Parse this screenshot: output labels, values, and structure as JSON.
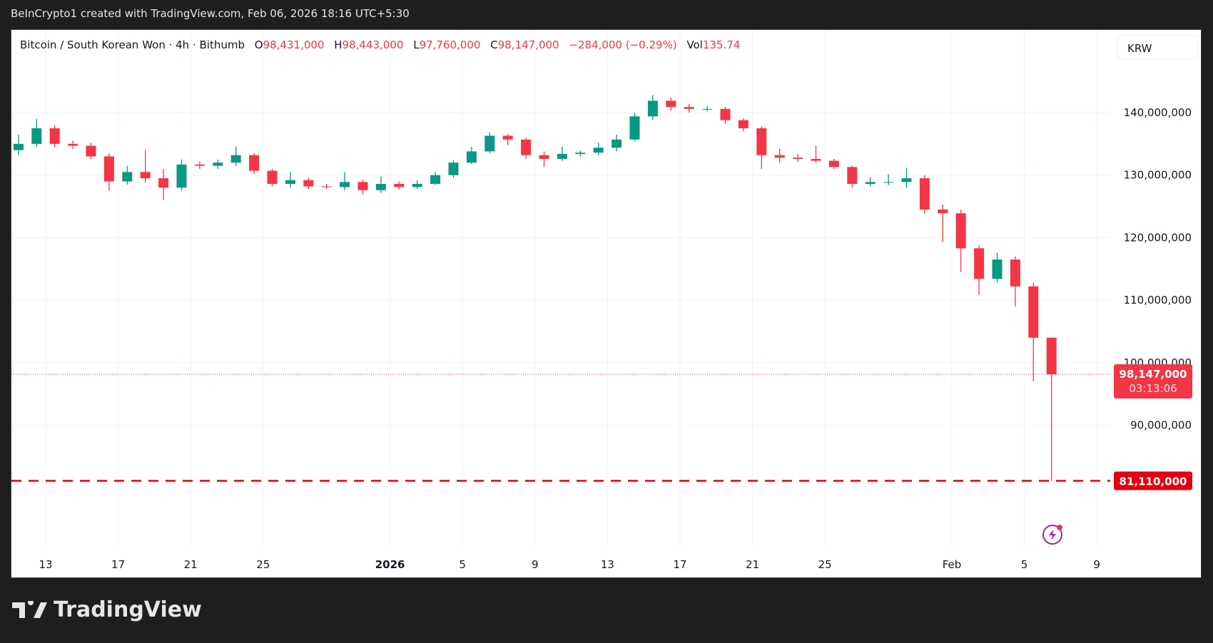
{
  "header": {
    "title": "BeInCrypto1 created with TradingView.com, Feb 06, 2026 18:16 UTC+5:30"
  },
  "legend": {
    "symbol": "Bitcoin / South Korean Won · 4h · Bithumb",
    "open_label": "O",
    "open": "98,431,000",
    "high_label": "H",
    "high": "98,443,000",
    "low_label": "L",
    "low": "97,760,000",
    "close_label": "C",
    "close": "98,147,000",
    "change": "−284,000 (−0.29%)",
    "vol_label": "Vol",
    "vol": "135.74"
  },
  "currency_button": "KRW",
  "price_label": {
    "price": "98,147,000",
    "countdown": "03:13:06"
  },
  "level_label": "81,110,000",
  "brand": "TradingView",
  "colors": {
    "up": "#089981",
    "down": "#f23645",
    "level": "#e3000f",
    "lightning": "#9c27b0"
  },
  "chart_data": {
    "type": "candlestick",
    "timeframe_note": "candles approximated per day from 4h chart",
    "yticks": [
      "90,000,000",
      "100,000,000",
      "110,000,000",
      "120,000,000",
      "130,000,000",
      "140,000,000"
    ],
    "ytick_values": [
      90000000,
      100000000,
      110000000,
      120000000,
      130000000,
      140000000
    ],
    "ylim": [
      72000000,
      150000000
    ],
    "xticks": [
      {
        "label": "13",
        "date": "2025-12-13"
      },
      {
        "label": "17",
        "date": "2025-12-17"
      },
      {
        "label": "21",
        "date": "2025-12-21"
      },
      {
        "label": "25",
        "date": "2025-12-25"
      },
      {
        "label": "2026",
        "date": "2026-01-01"
      },
      {
        "label": "5",
        "date": "2026-01-05"
      },
      {
        "label": "9",
        "date": "2026-01-09"
      },
      {
        "label": "13",
        "date": "2026-01-13"
      },
      {
        "label": "17",
        "date": "2026-01-17"
      },
      {
        "label": "21",
        "date": "2026-01-21"
      },
      {
        "label": "25",
        "date": "2026-01-25"
      },
      {
        "label": "Feb",
        "date": "2026-02-01"
      },
      {
        "label": "5",
        "date": "2026-02-05"
      },
      {
        "label": "9",
        "date": "2026-02-09"
      }
    ],
    "horizontal_line": 81110000,
    "last_price": 98147000,
    "grid": true,
    "candles": [
      {
        "date": "2025-12-11",
        "o": 134.0,
        "h": 136.5,
        "l": 133.2,
        "c": 135.0
      },
      {
        "date": "2025-12-12",
        "o": 135.0,
        "h": 139.0,
        "l": 134.5,
        "c": 137.5
      },
      {
        "date": "2025-12-13",
        "o": 137.5,
        "h": 138.0,
        "l": 134.5,
        "c": 135.0
      },
      {
        "date": "2025-12-14",
        "o": 135.0,
        "h": 135.5,
        "l": 134.2,
        "c": 134.7
      },
      {
        "date": "2025-12-15",
        "o": 134.7,
        "h": 135.2,
        "l": 132.5,
        "c": 133.0
      },
      {
        "date": "2025-12-16",
        "o": 133.0,
        "h": 133.5,
        "l": 127.5,
        "c": 129.0
      },
      {
        "date": "2025-12-17",
        "o": 129.0,
        "h": 131.5,
        "l": 128.5,
        "c": 130.5
      },
      {
        "date": "2025-12-18",
        "o": 130.5,
        "h": 134.0,
        "l": 128.8,
        "c": 129.5
      },
      {
        "date": "2025-12-19",
        "o": 129.5,
        "h": 131.0,
        "l": 126.0,
        "c": 128.0
      },
      {
        "date": "2025-12-20",
        "o": 128.0,
        "h": 132.5,
        "l": 127.5,
        "c": 131.7
      },
      {
        "date": "2025-12-21",
        "o": 131.7,
        "h": 132.2,
        "l": 131.0,
        "c": 131.5
      },
      {
        "date": "2025-12-22",
        "o": 131.5,
        "h": 132.5,
        "l": 131.0,
        "c": 132.0
      },
      {
        "date": "2025-12-23",
        "o": 132.0,
        "h": 134.6,
        "l": 131.5,
        "c": 133.2
      },
      {
        "date": "2025-12-24",
        "o": 133.2,
        "h": 133.5,
        "l": 130.2,
        "c": 130.7
      },
      {
        "date": "2025-12-25",
        "o": 130.7,
        "h": 131.0,
        "l": 128.2,
        "c": 128.6
      },
      {
        "date": "2025-12-26",
        "o": 128.6,
        "h": 130.5,
        "l": 128.0,
        "c": 129.2
      },
      {
        "date": "2025-12-27",
        "o": 129.2,
        "h": 129.6,
        "l": 127.8,
        "c": 128.2
      },
      {
        "date": "2025-12-28",
        "o": 128.2,
        "h": 128.6,
        "l": 127.8,
        "c": 128.1
      },
      {
        "date": "2025-12-29",
        "o": 128.1,
        "h": 130.5,
        "l": 127.6,
        "c": 128.9
      },
      {
        "date": "2025-12-30",
        "o": 128.9,
        "h": 129.3,
        "l": 126.9,
        "c": 127.6
      },
      {
        "date": "2025-12-31",
        "o": 127.6,
        "h": 129.8,
        "l": 127.2,
        "c": 128.6
      },
      {
        "date": "2026-01-01",
        "o": 128.6,
        "h": 129.0,
        "l": 127.7,
        "c": 128.1
      },
      {
        "date": "2026-01-02",
        "o": 128.1,
        "h": 129.2,
        "l": 127.8,
        "c": 128.6
      },
      {
        "date": "2026-01-03",
        "o": 128.6,
        "h": 130.5,
        "l": 128.4,
        "c": 130.0
      },
      {
        "date": "2026-01-04",
        "o": 130.0,
        "h": 132.4,
        "l": 129.6,
        "c": 132.0
      },
      {
        "date": "2026-01-05",
        "o": 132.0,
        "h": 134.5,
        "l": 131.8,
        "c": 133.8
      },
      {
        "date": "2026-01-06",
        "o": 133.8,
        "h": 136.8,
        "l": 133.5,
        "c": 136.3
      },
      {
        "date": "2026-01-07",
        "o": 136.3,
        "h": 136.6,
        "l": 134.8,
        "c": 135.7
      },
      {
        "date": "2026-01-08",
        "o": 135.7,
        "h": 136.0,
        "l": 132.6,
        "c": 133.2
      },
      {
        "date": "2026-01-09",
        "o": 133.2,
        "h": 133.8,
        "l": 131.3,
        "c": 132.6
      },
      {
        "date": "2026-01-10",
        "o": 132.6,
        "h": 134.5,
        "l": 132.3,
        "c": 133.4
      },
      {
        "date": "2026-01-11",
        "o": 133.4,
        "h": 133.9,
        "l": 133.0,
        "c": 133.6
      },
      {
        "date": "2026-01-12",
        "o": 133.6,
        "h": 135.2,
        "l": 133.2,
        "c": 134.4
      },
      {
        "date": "2026-01-13",
        "o": 134.4,
        "h": 136.5,
        "l": 133.8,
        "c": 135.7
      },
      {
        "date": "2026-01-14",
        "o": 135.7,
        "h": 140.0,
        "l": 135.4,
        "c": 139.4
      },
      {
        "date": "2026-01-15",
        "o": 139.4,
        "h": 142.8,
        "l": 138.8,
        "c": 141.9
      },
      {
        "date": "2026-01-16",
        "o": 141.9,
        "h": 142.4,
        "l": 140.3,
        "c": 140.9
      },
      {
        "date": "2026-01-17",
        "o": 140.9,
        "h": 141.4,
        "l": 140.0,
        "c": 140.6
      },
      {
        "date": "2026-01-18",
        "o": 140.6,
        "h": 141.0,
        "l": 140.2,
        "c": 140.6
      },
      {
        "date": "2026-01-19",
        "o": 140.6,
        "h": 140.9,
        "l": 138.2,
        "c": 138.8
      },
      {
        "date": "2026-01-20",
        "o": 138.8,
        "h": 139.1,
        "l": 137.0,
        "c": 137.5
      },
      {
        "date": "2026-01-21",
        "o": 137.5,
        "h": 137.8,
        "l": 131.0,
        "c": 133.2
      },
      {
        "date": "2026-01-22",
        "o": 133.2,
        "h": 134.2,
        "l": 132.0,
        "c": 132.8
      },
      {
        "date": "2026-01-23",
        "o": 132.8,
        "h": 133.4,
        "l": 132.1,
        "c": 132.6
      },
      {
        "date": "2026-01-24",
        "o": 132.6,
        "h": 134.7,
        "l": 132.0,
        "c": 132.3
      },
      {
        "date": "2026-01-25",
        "o": 132.3,
        "h": 132.6,
        "l": 131.0,
        "c": 131.3
      },
      {
        "date": "2026-01-26",
        "o": 131.3,
        "h": 131.5,
        "l": 128.0,
        "c": 128.6
      },
      {
        "date": "2026-01-27",
        "o": 128.6,
        "h": 129.7,
        "l": 128.2,
        "c": 128.9
      },
      {
        "date": "2026-01-28",
        "o": 128.9,
        "h": 130.2,
        "l": 128.4,
        "c": 128.9
      },
      {
        "date": "2026-01-29",
        "o": 128.9,
        "h": 131.2,
        "l": 128.0,
        "c": 129.5
      },
      {
        "date": "2026-01-30",
        "o": 129.5,
        "h": 130.0,
        "l": 123.8,
        "c": 124.5
      },
      {
        "date": "2026-01-31",
        "o": 124.5,
        "h": 125.3,
        "l": 119.3,
        "c": 123.9
      },
      {
        "date": "2026-02-01",
        "o": 123.9,
        "h": 124.5,
        "l": 114.5,
        "c": 118.3
      },
      {
        "date": "2026-02-02",
        "o": 118.3,
        "h": 118.8,
        "l": 110.8,
        "c": 113.4
      },
      {
        "date": "2026-02-03",
        "o": 113.4,
        "h": 117.6,
        "l": 112.8,
        "c": 116.5
      },
      {
        "date": "2026-02-04",
        "o": 116.5,
        "h": 117.0,
        "l": 109.0,
        "c": 112.2
      },
      {
        "date": "2026-02-05",
        "o": 112.2,
        "h": 112.8,
        "l": 97.0,
        "c": 104.0
      },
      {
        "date": "2026-02-06",
        "o": 104.0,
        "h": 99.8,
        "l": 81.11,
        "c": 98.147
      }
    ]
  }
}
